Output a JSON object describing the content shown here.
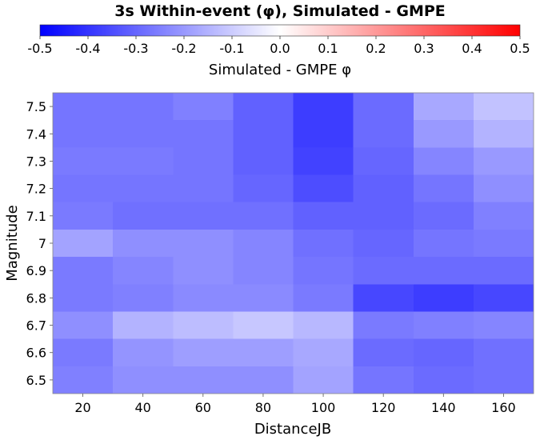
{
  "chart_data": {
    "type": "heatmap",
    "title": "3s Within-event (φ), Simulated - GMPE",
    "xlabel": "DistanceJB",
    "ylabel": "Magnitude",
    "colorbar": {
      "label": "Simulated - GMPE φ",
      "min": -0.5,
      "max": 0.5,
      "min_color": "#0000ff",
      "mid_color": "#ffffff",
      "max_color": "#ff0000",
      "ticks": [
        -0.5,
        -0.4,
        -0.3,
        -0.2,
        -0.1,
        0.0,
        0.1,
        0.2,
        0.3,
        0.4,
        0.5
      ],
      "tick_labels": [
        "-0.5",
        "-0.4",
        "-0.3",
        "-0.2",
        "-0.1",
        "0.0",
        "0.1",
        "0.2",
        "0.3",
        "0.4",
        "0.5"
      ]
    },
    "x": [
      20,
      40,
      60,
      80,
      100,
      120,
      140,
      160
    ],
    "x_tick_labels": [
      "20",
      "40",
      "60",
      "80",
      "100",
      "120",
      "140",
      "160"
    ],
    "xlim": [
      10,
      170
    ],
    "y": [
      6.5,
      6.6,
      6.7,
      6.8,
      6.9,
      7.0,
      7.1,
      7.2,
      7.3,
      7.4,
      7.5
    ],
    "y_tick_labels": [
      "6.5",
      "6.6",
      "6.7",
      "6.8",
      "6.9",
      "7",
      "7.1",
      "7.2",
      "7.3",
      "7.4",
      "7.5"
    ],
    "ylim": [
      6.45,
      7.55
    ],
    "values": [
      [
        -0.25,
        -0.22,
        -0.22,
        -0.22,
        -0.18,
        -0.27,
        -0.29,
        -0.28
      ],
      [
        -0.26,
        -0.21,
        -0.19,
        -0.19,
        -0.17,
        -0.29,
        -0.3,
        -0.28
      ],
      [
        -0.22,
        -0.15,
        -0.13,
        -0.11,
        -0.14,
        -0.26,
        -0.25,
        -0.24
      ],
      [
        -0.26,
        -0.25,
        -0.23,
        -0.23,
        -0.26,
        -0.36,
        -0.38,
        -0.36
      ],
      [
        -0.26,
        -0.24,
        -0.22,
        -0.24,
        -0.27,
        -0.29,
        -0.29,
        -0.29
      ],
      [
        -0.18,
        -0.22,
        -0.22,
        -0.24,
        -0.28,
        -0.3,
        -0.27,
        -0.26
      ],
      [
        -0.26,
        -0.28,
        -0.28,
        -0.28,
        -0.31,
        -0.31,
        -0.29,
        -0.25
      ],
      [
        -0.27,
        -0.27,
        -0.27,
        -0.3,
        -0.35,
        -0.31,
        -0.27,
        -0.22
      ],
      [
        -0.26,
        -0.26,
        -0.27,
        -0.31,
        -0.37,
        -0.3,
        -0.24,
        -0.2
      ],
      [
        -0.27,
        -0.27,
        -0.27,
        -0.31,
        -0.38,
        -0.29,
        -0.2,
        -0.15
      ],
      [
        -0.27,
        -0.27,
        -0.25,
        -0.31,
        -0.38,
        -0.29,
        -0.17,
        -0.12
      ]
    ]
  }
}
